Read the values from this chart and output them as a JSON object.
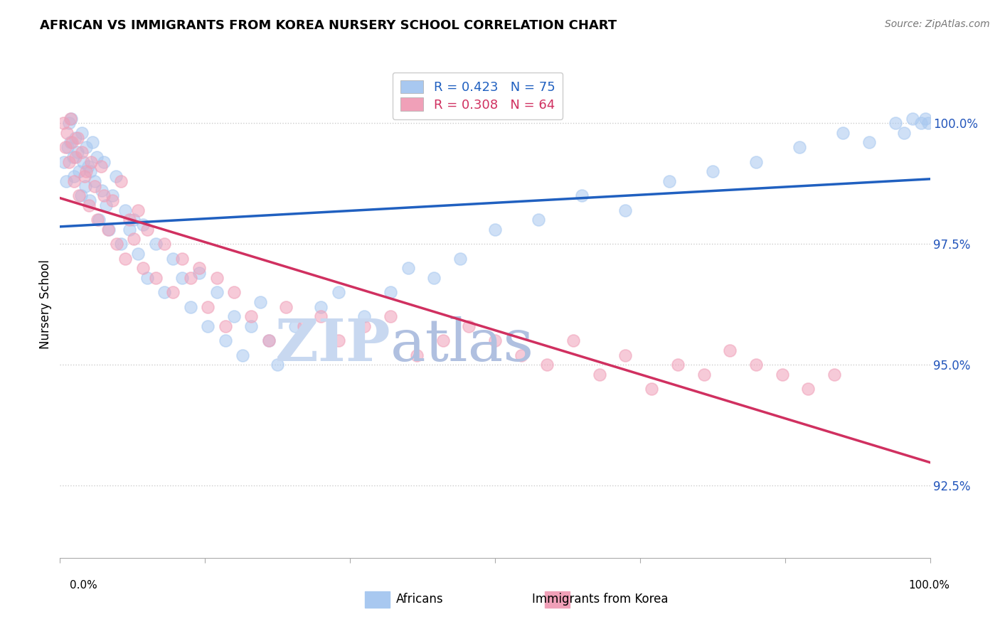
{
  "title": "AFRICAN VS IMMIGRANTS FROM KOREA NURSERY SCHOOL CORRELATION CHART",
  "source": "Source: ZipAtlas.com",
  "ylabel": "Nursery School",
  "ytick_labels": [
    "92.5%",
    "95.0%",
    "97.5%",
    "100.0%"
  ],
  "ytick_values": [
    92.5,
    95.0,
    97.5,
    100.0
  ],
  "ymin": 91.0,
  "ymax": 101.5,
  "xmin": 0.0,
  "xmax": 100.0,
  "legend_africans": "Africans",
  "legend_korea": "Immigrants from Korea",
  "r_africans": 0.423,
  "n_africans": 75,
  "r_korea": 0.308,
  "n_korea": 64,
  "color_africans": "#A8C8F0",
  "color_korea": "#F0A0B8",
  "color_line_africans": "#2060C0",
  "color_line_korea": "#D03060",
  "watermark_zip": "#C8D8F0",
  "watermark_atlas": "#B0C0E0",
  "africans_x": [
    0.5,
    0.7,
    0.9,
    1.0,
    1.2,
    1.3,
    1.5,
    1.6,
    1.8,
    2.0,
    2.2,
    2.4,
    2.5,
    2.7,
    2.9,
    3.0,
    3.2,
    3.4,
    3.5,
    3.7,
    4.0,
    4.2,
    4.5,
    4.8,
    5.0,
    5.3,
    5.6,
    6.0,
    6.4,
    7.0,
    7.5,
    8.0,
    8.5,
    9.0,
    9.5,
    10.0,
    11.0,
    12.0,
    13.0,
    14.0,
    15.0,
    16.0,
    17.0,
    18.0,
    19.0,
    20.0,
    21.0,
    22.0,
    23.0,
    24.0,
    25.0,
    27.0,
    30.0,
    32.0,
    35.0,
    38.0,
    40.0,
    43.0,
    46.0,
    50.0,
    55.0,
    60.0,
    65.0,
    70.0,
    75.0,
    80.0,
    85.0,
    90.0,
    93.0,
    96.0,
    97.0,
    98.0,
    99.0,
    99.5,
    99.8
  ],
  "africans_y": [
    99.2,
    98.8,
    99.5,
    100.0,
    99.6,
    100.1,
    99.3,
    98.9,
    99.7,
    99.4,
    99.0,
    98.5,
    99.8,
    99.2,
    98.7,
    99.5,
    99.1,
    98.4,
    99.0,
    99.6,
    98.8,
    99.3,
    98.0,
    98.6,
    99.2,
    98.3,
    97.8,
    98.5,
    98.9,
    97.5,
    98.2,
    97.8,
    98.0,
    97.3,
    97.9,
    96.8,
    97.5,
    96.5,
    97.2,
    96.8,
    96.2,
    96.9,
    95.8,
    96.5,
    95.5,
    96.0,
    95.2,
    95.8,
    96.3,
    95.5,
    95.0,
    95.8,
    96.2,
    96.5,
    96.0,
    96.5,
    97.0,
    96.8,
    97.2,
    97.8,
    98.0,
    98.5,
    98.2,
    98.8,
    99.0,
    99.2,
    99.5,
    99.8,
    99.6,
    100.0,
    99.8,
    100.1,
    100.0,
    100.1,
    100.0
  ],
  "korea_x": [
    0.4,
    0.6,
    0.8,
    1.0,
    1.2,
    1.4,
    1.6,
    1.8,
    2.0,
    2.2,
    2.5,
    2.8,
    3.0,
    3.3,
    3.6,
    4.0,
    4.3,
    4.7,
    5.0,
    5.5,
    6.0,
    6.5,
    7.0,
    7.5,
    8.0,
    8.5,
    9.0,
    9.5,
    10.0,
    11.0,
    12.0,
    13.0,
    14.0,
    15.0,
    16.0,
    17.0,
    18.0,
    19.0,
    20.0,
    22.0,
    24.0,
    26.0,
    28.0,
    30.0,
    32.0,
    35.0,
    38.0,
    41.0,
    44.0,
    47.0,
    50.0,
    53.0,
    56.0,
    59.0,
    62.0,
    65.0,
    68.0,
    71.0,
    74.0,
    77.0,
    80.0,
    83.0,
    86.0,
    89.0
  ],
  "korea_y": [
    100.0,
    99.5,
    99.8,
    99.2,
    100.1,
    99.6,
    98.8,
    99.3,
    99.7,
    98.5,
    99.4,
    98.9,
    99.0,
    98.3,
    99.2,
    98.7,
    98.0,
    99.1,
    98.5,
    97.8,
    98.4,
    97.5,
    98.8,
    97.2,
    98.0,
    97.6,
    98.2,
    97.0,
    97.8,
    96.8,
    97.5,
    96.5,
    97.2,
    96.8,
    97.0,
    96.2,
    96.8,
    95.8,
    96.5,
    96.0,
    95.5,
    96.2,
    95.8,
    96.0,
    95.5,
    95.8,
    96.0,
    95.2,
    95.5,
    95.8,
    95.5,
    95.2,
    95.0,
    95.5,
    94.8,
    95.2,
    94.5,
    95.0,
    94.8,
    95.3,
    95.0,
    94.8,
    94.5,
    94.8
  ]
}
